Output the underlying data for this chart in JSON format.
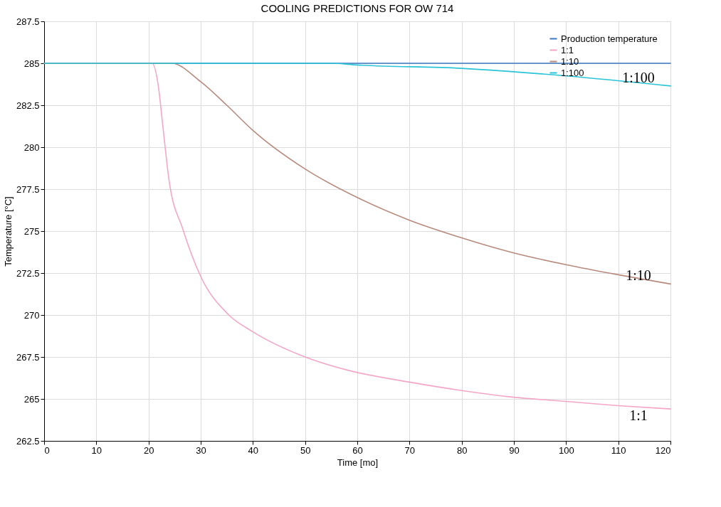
{
  "chart_data": {
    "type": "line",
    "title": "COOLING PREDICTIONS FOR OW  714",
    "xlabel": "Time [mo]",
    "ylabel": "Temperature [°C]",
    "xlim": [
      0,
      120
    ],
    "xticks": [
      0,
      10,
      20,
      30,
      40,
      50,
      60,
      70,
      80,
      90,
      100,
      110,
      120
    ],
    "ylim": [
      262.5,
      287.5
    ],
    "yticks": [
      262.5,
      265,
      267.5,
      270,
      272.5,
      275,
      277.5,
      280,
      282.5,
      285,
      287.5
    ],
    "grid": true,
    "legend": "top right",
    "marker": "none",
    "line_style": "solid",
    "series": [
      {
        "name": "Production temperature",
        "color": "#3a78c0",
        "x": [
          0,
          120
        ],
        "values": [
          285,
          285
        ]
      },
      {
        "name": "1:1",
        "color": "#f4a6c6",
        "x": [
          0,
          20.7,
          21.9,
          22.8,
          23.9,
          26.6,
          30,
          35.4,
          40,
          50,
          58.3,
          70,
          80,
          90,
          100,
          110,
          120
        ],
        "values": [
          285,
          285,
          283.6,
          281.1,
          278.1,
          275.1,
          272.3,
          270.0,
          269.0,
          267.5,
          266.7,
          266.0,
          265.5,
          265.1,
          264.85,
          264.6,
          264.4
        ]
      },
      {
        "name": "1:10",
        "color": "#b88a7e",
        "x": [
          0,
          24.4,
          30,
          35,
          40,
          50,
          60,
          70,
          80,
          90,
          100,
          110,
          120
        ],
        "values": [
          285,
          285,
          283.9,
          282.5,
          281.0,
          278.7,
          277.0,
          275.65,
          274.6,
          273.7,
          273.0,
          272.4,
          271.85
        ]
      },
      {
        "name": "1:100",
        "color": "#29c4d8",
        "x": [
          0,
          55,
          60,
          80,
          100,
          120
        ],
        "values": [
          285,
          285,
          284.9,
          284.7,
          284.25,
          283.65
        ]
      }
    ],
    "annotations": [
      "1:100",
      "1:10",
      "1:1"
    ]
  }
}
